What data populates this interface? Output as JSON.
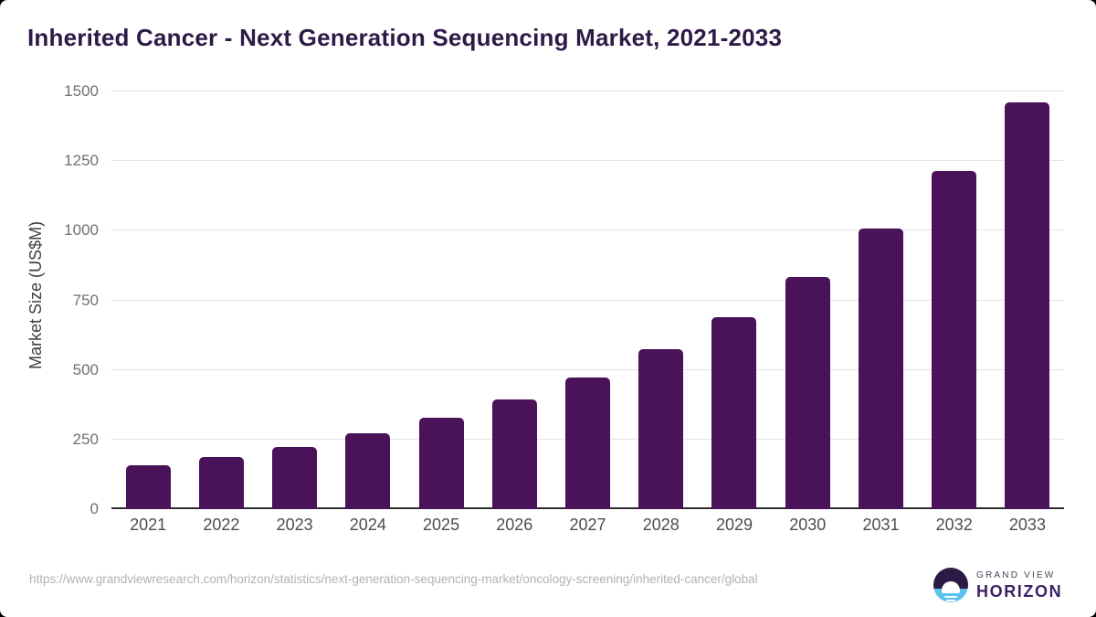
{
  "header": {
    "title": "Inherited Cancer - Next Generation Sequencing Market, 2021-2033"
  },
  "chart_data": {
    "type": "bar",
    "title": "Inherited Cancer - Next Generation Sequencing Market, 2021-2033",
    "categories": [
      "2021",
      "2022",
      "2023",
      "2024",
      "2025",
      "2026",
      "2027",
      "2028",
      "2029",
      "2030",
      "2031",
      "2032",
      "2033"
    ],
    "values": [
      157,
      188,
      224,
      271,
      328,
      394,
      473,
      575,
      690,
      835,
      1008,
      1215,
      1460
    ],
    "xlabel": "",
    "ylabel": "Market Size (US$M)",
    "ylim": [
      0,
      1500
    ],
    "yticks": [
      0,
      250,
      500,
      750,
      1000,
      1250,
      1500
    ],
    "grid": true,
    "legend": false,
    "bar_color": "#4a1259"
  },
  "footer": {
    "source_url": "https://www.grandviewresearch.com/horizon/statistics/next-generation-sequencing-market/oncology-screening/inherited-cancer/global",
    "logo": {
      "brand_top": "GRAND VIEW",
      "brand_bottom": "HORIZON"
    }
  },
  "colors": {
    "title": "#2e1a47",
    "bar": "#4a1259",
    "gridline": "#e3e3e3",
    "axis_line": "#2f2f2f",
    "y_tick_label": "#707070",
    "x_tick_label": "#4d4d4d",
    "axis_title": "#3d3d3d",
    "source_text": "#b2b2b2",
    "logo_dark": "#2b1b44",
    "logo_blue": "#59c3ee"
  }
}
